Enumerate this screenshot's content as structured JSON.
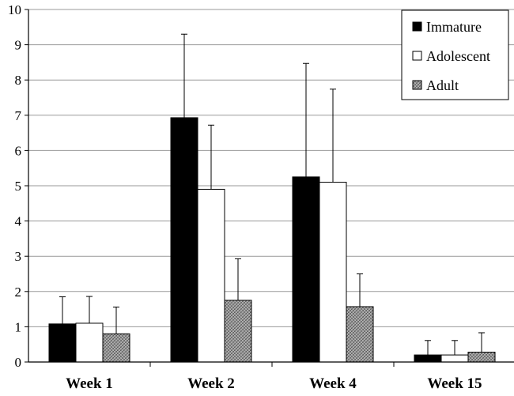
{
  "chart_data": {
    "type": "bar",
    "categories": [
      "Week 1",
      "Week 2",
      "Week 4",
      "Week 15"
    ],
    "series": [
      {
        "name": "Immature",
        "values": [
          1.08,
          6.93,
          5.25,
          0.2
        ],
        "errors": [
          0.77,
          2.37,
          3.22,
          0.41
        ],
        "color": "#000000"
      },
      {
        "name": "Adolescent",
        "values": [
          1.1,
          4.9,
          5.1,
          0.2
        ],
        "errors": [
          0.76,
          1.82,
          2.64,
          0.41
        ],
        "color": "#ffffff"
      },
      {
        "name": "Adult",
        "values": [
          0.8,
          1.75,
          1.57,
          0.28
        ],
        "errors": [
          0.76,
          1.18,
          0.93,
          0.55
        ],
        "color": "#8c8c8c",
        "pattern": "crosshatch"
      }
    ],
    "ylim": [
      0,
      10
    ],
    "yticks": [
      "0",
      "1",
      "2",
      "3",
      "4",
      "5",
      "6",
      "7",
      "8",
      "9",
      "10"
    ],
    "grid": true,
    "legend": "top-right",
    "title": "",
    "xlabel": "",
    "ylabel": ""
  }
}
